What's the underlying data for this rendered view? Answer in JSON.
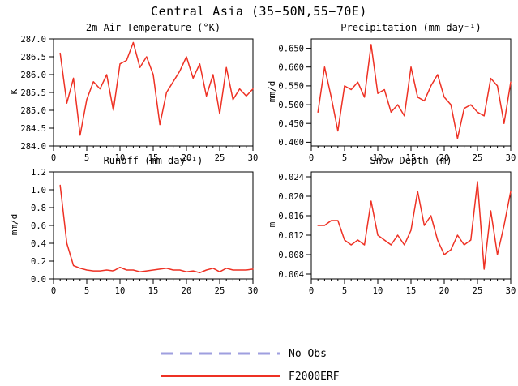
{
  "page_title": "Central Asia (35−50N,55−70E)",
  "colors": {
    "line": "#ee3124",
    "no_obs": "#9f9fdf",
    "axis": "#000000",
    "background": "#ffffff"
  },
  "legend": {
    "items": [
      {
        "label": "No Obs",
        "color": "#9f9fdf",
        "style": "dashed"
      },
      {
        "label": "F2000ERF",
        "color": "#ee3124",
        "style": "solid"
      }
    ]
  },
  "chart_data": [
    {
      "type": "line",
      "key": "air-temperature",
      "title": "2m Air Temperature (°K)",
      "ylabel": "K",
      "xlim": [
        0,
        30
      ],
      "ylim": [
        284.0,
        287.0
      ],
      "xtick_values": [
        0,
        5,
        10,
        15,
        20,
        25,
        30
      ],
      "xtick_labels": [
        "0",
        "5",
        "10",
        "15",
        "20",
        "25",
        "30"
      ],
      "ytick_values": [
        284.0,
        284.5,
        285.0,
        285.5,
        286.0,
        286.5,
        287.0
      ],
      "ytick_labels": [
        "284.0",
        "284.5",
        "285.0",
        "285.5",
        "286.0",
        "286.5",
        "287.0"
      ],
      "x": [
        1,
        2,
        3,
        4,
        5,
        6,
        7,
        8,
        9,
        10,
        11,
        12,
        13,
        14,
        15,
        16,
        17,
        18,
        19,
        20,
        21,
        22,
        23,
        24,
        25,
        26,
        27,
        28,
        29,
        30
      ],
      "values": [
        286.6,
        285.2,
        285.9,
        284.3,
        285.3,
        285.8,
        285.6,
        286.0,
        285.0,
        286.3,
        286.4,
        286.9,
        286.2,
        286.5,
        286.0,
        284.6,
        285.5,
        285.8,
        286.1,
        286.5,
        285.9,
        286.3,
        285.4,
        286.0,
        284.9,
        286.2,
        285.3,
        285.6,
        285.4,
        285.6
      ]
    },
    {
      "type": "line",
      "key": "precipitation",
      "title": "Precipitation (mm day⁻¹)",
      "ylabel": "mm/d",
      "xlim": [
        0,
        30
      ],
      "ylim": [
        0.39,
        0.675
      ],
      "xtick_values": [
        0,
        5,
        10,
        15,
        20,
        25,
        30
      ],
      "xtick_labels": [
        "0",
        "5",
        "10",
        "15",
        "20",
        "25",
        "30"
      ],
      "ytick_values": [
        0.4,
        0.45,
        0.5,
        0.55,
        0.6,
        0.65
      ],
      "ytick_labels": [
        "0.400",
        "0.450",
        "0.500",
        "0.550",
        "0.600",
        "0.650"
      ],
      "x": [
        1,
        2,
        3,
        4,
        5,
        6,
        7,
        8,
        9,
        10,
        11,
        12,
        13,
        14,
        15,
        16,
        17,
        18,
        19,
        20,
        21,
        22,
        23,
        24,
        25,
        26,
        27,
        28,
        29,
        30
      ],
      "values": [
        0.48,
        0.6,
        0.52,
        0.43,
        0.55,
        0.54,
        0.56,
        0.52,
        0.66,
        0.53,
        0.54,
        0.48,
        0.5,
        0.47,
        0.6,
        0.52,
        0.51,
        0.55,
        0.58,
        0.52,
        0.5,
        0.41,
        0.49,
        0.5,
        0.48,
        0.47,
        0.57,
        0.55,
        0.45,
        0.56
      ]
    },
    {
      "type": "line",
      "key": "runoff",
      "title": "Runoff (mm day⁻¹)",
      "ylabel": "mm/d",
      "xlim": [
        0,
        30
      ],
      "ylim": [
        0.0,
        1.2
      ],
      "xtick_values": [
        0,
        5,
        10,
        15,
        20,
        25,
        30
      ],
      "xtick_labels": [
        "0",
        "5",
        "10",
        "15",
        "20",
        "25",
        "30"
      ],
      "ytick_values": [
        0.0,
        0.2,
        0.4,
        0.6,
        0.8,
        1.0,
        1.2
      ],
      "ytick_labels": [
        "0.0",
        "0.2",
        "0.4",
        "0.6",
        "0.8",
        "1.0",
        "1.2"
      ],
      "x": [
        1,
        2,
        3,
        4,
        5,
        6,
        7,
        8,
        9,
        10,
        11,
        12,
        13,
        14,
        15,
        16,
        17,
        18,
        19,
        20,
        21,
        22,
        23,
        24,
        25,
        26,
        27,
        28,
        29,
        30
      ],
      "values": [
        1.05,
        0.4,
        0.15,
        0.12,
        0.1,
        0.09,
        0.09,
        0.1,
        0.09,
        0.13,
        0.1,
        0.1,
        0.08,
        0.09,
        0.1,
        0.11,
        0.12,
        0.1,
        0.1,
        0.08,
        0.09,
        0.07,
        0.1,
        0.12,
        0.08,
        0.12,
        0.1,
        0.1,
        0.1,
        0.11
      ]
    },
    {
      "type": "line",
      "key": "snow-depth",
      "title": "Snow Depth (m)",
      "ylabel": "m",
      "xlim": [
        0,
        30
      ],
      "ylim": [
        0.003,
        0.025
      ],
      "xtick_values": [
        0,
        5,
        10,
        15,
        20,
        25,
        30
      ],
      "xtick_labels": [
        "0",
        "5",
        "10",
        "15",
        "20",
        "25",
        "30"
      ],
      "ytick_values": [
        0.004,
        0.008,
        0.012,
        0.016,
        0.02,
        0.024
      ],
      "ytick_labels": [
        "0.004",
        "0.008",
        "0.012",
        "0.016",
        "0.020",
        "0.024"
      ],
      "x": [
        1,
        2,
        3,
        4,
        5,
        6,
        7,
        8,
        9,
        10,
        11,
        12,
        13,
        14,
        15,
        16,
        17,
        18,
        19,
        20,
        21,
        22,
        23,
        24,
        25,
        26,
        27,
        28,
        29,
        30
      ],
      "values": [
        0.014,
        0.014,
        0.015,
        0.015,
        0.011,
        0.01,
        0.011,
        0.01,
        0.019,
        0.012,
        0.011,
        0.01,
        0.012,
        0.01,
        0.013,
        0.021,
        0.014,
        0.016,
        0.011,
        0.008,
        0.009,
        0.012,
        0.01,
        0.011,
        0.023,
        0.005,
        0.017,
        0.008,
        0.014,
        0.021
      ]
    }
  ]
}
